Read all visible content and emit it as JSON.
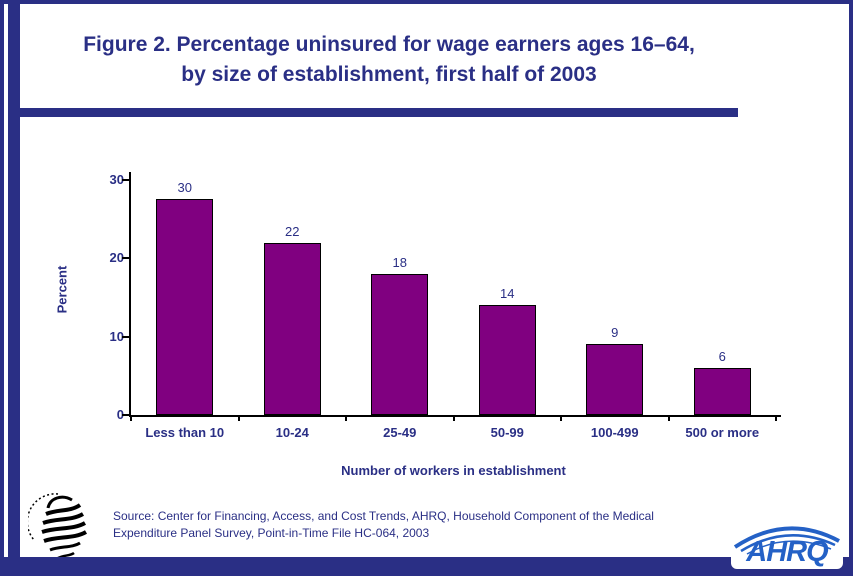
{
  "title": {
    "lines": [
      "Figure 2. Percentage uninsured for wage earners ages 16–64,",
      "by size of establishment, first half of 2003"
    ]
  },
  "chart_data": {
    "type": "bar",
    "categories": [
      "Less than 10",
      "10-24",
      "25-49",
      "50-99",
      "100-499",
      "500 or more"
    ],
    "values": [
      30,
      22,
      18,
      14,
      9,
      6
    ],
    "title": "Figure 2. Percentage uninsured for wage earners ages 16–64, by size of establishment, first half of 2003",
    "xlabel": "Number of workers in establishment",
    "ylabel": "Percent",
    "yticks": [
      0,
      10,
      20,
      30
    ],
    "ylim": [
      0,
      30
    ],
    "bar_color": "#800080",
    "grid": false,
    "legend": false
  },
  "source": {
    "lines": [
      "Source: Center for Financing, Access, and Cost Trends, AHRQ, Household Component of the Medical",
      "Expenditure Panel Survey, Point-in-Time File HC-064, 2003"
    ]
  },
  "logos": {
    "ahrq_label": "AHRQ"
  },
  "colors": {
    "navy": "#2A2F85",
    "purple": "#800080",
    "ahrq_blue": "#2461C6"
  }
}
